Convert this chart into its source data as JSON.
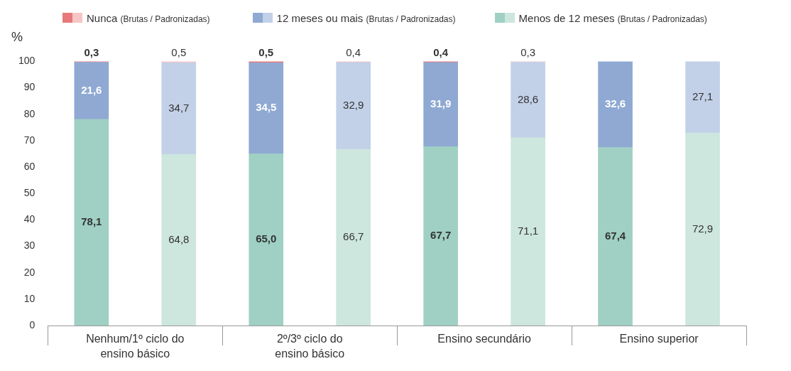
{
  "chart_data": {
    "type": "bar",
    "stacked": true,
    "ylabel": "%",
    "categories": [
      "Nenhum/1º ciclo do ensino básico",
      null,
      "2º/3º ciclo do ensino básico",
      null,
      "Ensino secundário",
      null,
      "Ensino superior",
      null
    ],
    "series": [
      {
        "name": "Menos de 12 meses (Brutas / Padronizadas)",
        "color": "#9fd0c3",
        "colors": [
          "#9fd0c3",
          "#cde6de",
          "#9fd0c3",
          "#cde6de",
          "#9fd0c3",
          "#cde6de",
          "#9fd0c3",
          "#cde6de"
        ],
        "values": [
          78.1,
          64.8,
          65.0,
          66.7,
          67.7,
          71.1,
          67.4,
          72.9
        ],
        "value_labels": [
          "78,1",
          "64,8",
          "65,0",
          "66,7",
          "67,7",
          "71,1",
          "67,4",
          "72,9"
        ]
      },
      {
        "name": "12 meses ou mais (Brutas / Padronizadas)",
        "color": "#8fa9d3",
        "colors": [
          "#8fa9d3",
          "#c2d0e8",
          "#8fa9d3",
          "#c2d0e8",
          "#8fa9d3",
          "#c2d0e8",
          "#8fa9d3",
          "#c2d0e8"
        ],
        "values": [
          21.6,
          34.7,
          34.5,
          32.9,
          31.9,
          28.6,
          32.6,
          27.1
        ],
        "value_labels": [
          "21,6",
          "34,7",
          "34,5",
          "32,9",
          "31,9",
          "28,6",
          "32,6",
          "27,1"
        ]
      },
      {
        "name": "Nunca (Brutas / Padronizadas)",
        "color": "#e8797a",
        "colors": [
          "#e8797a",
          "#f6c5c5",
          "#e8797a",
          "#f6c5c5",
          "#e8797a",
          "#f6c5c5",
          "#e8797a",
          "#f6c5c5"
        ],
        "values": [
          0.3,
          0.5,
          0.5,
          0.4,
          0.4,
          0.3,
          null,
          null
        ],
        "value_labels": [
          "0,3",
          "0,5",
          "0,5",
          "0,4",
          "0,4",
          "0,3",
          null,
          null
        ]
      }
    ],
    "ylim": [
      0,
      100
    ],
    "yticks": [
      0,
      10,
      20,
      30,
      40,
      50,
      60,
      70,
      80,
      90,
      100
    ],
    "grid": false,
    "legend": "top"
  }
}
